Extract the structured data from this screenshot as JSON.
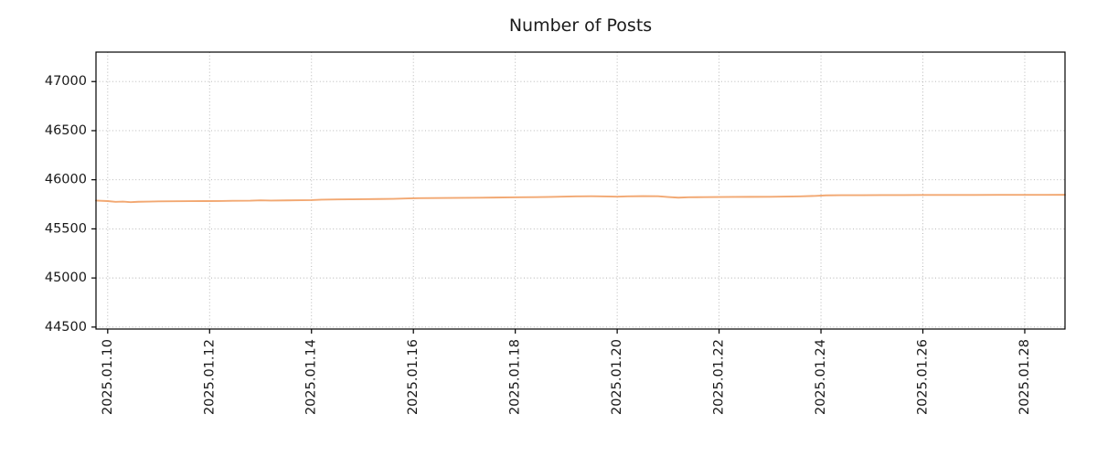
{
  "chart_data": {
    "type": "line",
    "title": "Number of Posts",
    "xlabel": "",
    "ylabel": "",
    "grid": true,
    "legend": false,
    "line_color": "#f2a872",
    "grid_color": "#b0b0b0",
    "axis_color": "#000000",
    "tick_label_color": "#1a1a1a",
    "xlim": [
      9.77,
      28.79
    ],
    "ylim": [
      44480,
      47300
    ],
    "y_ticks": [
      44500,
      45000,
      45500,
      46000,
      46500,
      47000
    ],
    "x_ticks": [
      {
        "v": 10,
        "label": "2025.01.10"
      },
      {
        "v": 12,
        "label": "2025.01.12"
      },
      {
        "v": 14,
        "label": "2025.01.14"
      },
      {
        "v": 16,
        "label": "2025.01.16"
      },
      {
        "v": 18,
        "label": "2025.01.18"
      },
      {
        "v": 20,
        "label": "2025.01.20"
      },
      {
        "v": 22,
        "label": "2025.01.22"
      },
      {
        "v": 24,
        "label": "2025.01.24"
      },
      {
        "v": 26,
        "label": "2025.01.26"
      },
      {
        "v": 28,
        "label": "2025.01.28"
      }
    ],
    "series": [
      {
        "name": "number_of_posts",
        "x": [
          9.77,
          10.0,
          10.15,
          10.3,
          10.45,
          10.6,
          10.8,
          11.0,
          11.3,
          11.6,
          11.9,
          12.2,
          12.5,
          12.8,
          13.0,
          13.2,
          13.5,
          13.8,
          14.0,
          14.2,
          14.5,
          14.8,
          15.0,
          15.3,
          15.6,
          15.9,
          16.1,
          16.4,
          16.7,
          17.0,
          17.3,
          17.6,
          17.9,
          18.1,
          18.4,
          18.7,
          19.0,
          19.2,
          19.5,
          19.8,
          20.0,
          20.2,
          20.5,
          20.8,
          21.0,
          21.2,
          21.4,
          21.7,
          22.0,
          22.3,
          22.6,
          23.0,
          23.3,
          23.6,
          23.9,
          24.1,
          24.4,
          24.8,
          25.2,
          25.6,
          26.0,
          26.5,
          27.0,
          27.5,
          28.0,
          28.4,
          28.79
        ],
        "y": [
          45788,
          45783,
          45775,
          45778,
          45772,
          45776,
          45778,
          45780,
          45781,
          45782,
          45783,
          45784,
          45786,
          45787,
          45791,
          45788,
          45790,
          45792,
          45793,
          45798,
          45800,
          45801,
          45802,
          45804,
          45806,
          45810,
          45813,
          45814,
          45815,
          45816,
          45817,
          45819,
          45821,
          45822,
          45823,
          45825,
          45829,
          45831,
          45832,
          45830,
          45828,
          45831,
          45833,
          45832,
          45824,
          45818,
          45822,
          45823,
          45824,
          45825,
          45826,
          45827,
          45829,
          45831,
          45836,
          45841,
          45843,
          45843,
          45844,
          45844,
          45845,
          45845,
          45845,
          45846,
          45846,
          45846,
          45847
        ]
      }
    ]
  }
}
